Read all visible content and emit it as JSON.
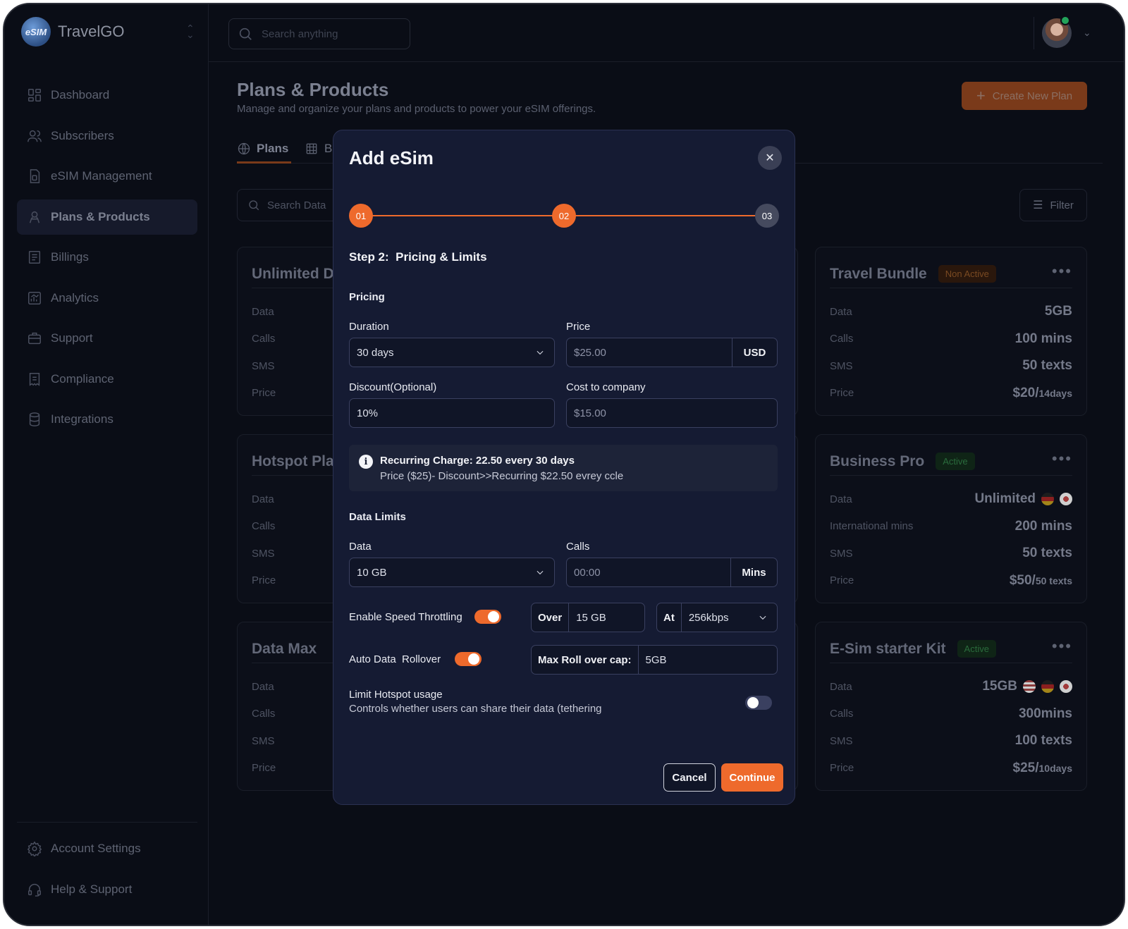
{
  "app": {
    "brand_logo_text": "eSIM",
    "brand_name": "TravelGO",
    "search_placeholder": "Search anything"
  },
  "sidebar": {
    "items": [
      {
        "label": "Dashboard",
        "icon": "dashboard-icon"
      },
      {
        "label": "Subscribers",
        "icon": "users-icon"
      },
      {
        "label": "eSIM Management",
        "icon": "sim-icon"
      },
      {
        "label": "Plans & Products",
        "icon": "plans-icon",
        "active": true
      },
      {
        "label": "Billings",
        "icon": "billing-icon"
      },
      {
        "label": "Analytics",
        "icon": "analytics-icon"
      },
      {
        "label": "Support",
        "icon": "briefcase-icon"
      },
      {
        "label": "Compliance",
        "icon": "compliance-icon"
      },
      {
        "label": "Integrations",
        "icon": "database-icon"
      }
    ],
    "bottom_items": [
      {
        "label": "Account Settings",
        "icon": "gear-icon"
      },
      {
        "label": "Help & Support",
        "icon": "headset-icon"
      }
    ]
  },
  "page": {
    "title": "Plans & Products",
    "subtitle": "Manage and organize your plans and products to power your eSIM offerings.",
    "create_button": "Create New Plan",
    "tabs": [
      {
        "label": "Plans",
        "active": true
      },
      {
        "label": "B"
      }
    ],
    "search_placeholder": "Search Data",
    "filter_label": "Filter"
  },
  "cards": {
    "left": [
      {
        "title": "Unlimited D",
        "rows": [
          "Data",
          "Calls",
          "SMS",
          "Price"
        ]
      },
      {
        "title": "Hotspot Pla",
        "rows": [
          "Data",
          "Calls",
          "SMS",
          "Price"
        ]
      },
      {
        "title": "Data Max",
        "rows": [
          "Data",
          "Calls",
          "SMS",
          "Price"
        ]
      }
    ],
    "right": [
      {
        "title": "Travel Bundle",
        "badge": "Non Active",
        "badge_type": "inactive",
        "rows": [
          {
            "label": "Data",
            "value": "5GB"
          },
          {
            "label": "Calls",
            "value": "100 mins"
          },
          {
            "label": "SMS",
            "value": "50 texts"
          },
          {
            "label": "Price",
            "value": "$20/",
            "suffix": "14days"
          }
        ]
      },
      {
        "title": "Business Pro",
        "badge": "Active",
        "badge_type": "active",
        "rows": [
          {
            "label": "Data",
            "value": "Unlimited",
            "flags": [
              "de",
              "ca"
            ]
          },
          {
            "label": "International mins",
            "value": "200 mins"
          },
          {
            "label": "SMS",
            "value": "50 texts"
          },
          {
            "label": "Price",
            "value": "$50/",
            "suffix": "50 texts"
          }
        ]
      },
      {
        "title": "E-Sim starter Kit",
        "badge": "Active",
        "badge_type": "active",
        "rows": [
          {
            "label": "Data",
            "value": "15GB",
            "flags": [
              "us",
              "de",
              "ca"
            ]
          },
          {
            "label": "Calls",
            "value": "300mins"
          },
          {
            "label": "SMS",
            "value": "100 texts"
          },
          {
            "label": "Price",
            "value": "$25/",
            "suffix": "10days"
          }
        ]
      }
    ]
  },
  "modal": {
    "title": "Add eSim",
    "close_icon": "close-icon",
    "steps": [
      "01",
      "02",
      "03"
    ],
    "current_step": 2,
    "step_heading": "Step 2:  Pricing & Limits",
    "pricing_section": "Pricing",
    "duration_label": "Duration",
    "duration_value": "30 days",
    "price_label": "Price",
    "price_placeholder": "$25.00",
    "price_currency": "USD",
    "discount_label": "Discount(Optional)",
    "discount_value": "10%",
    "cost_label": "Cost to company",
    "cost_placeholder": "$15.00",
    "info_title": "Recurring Charge: 22.50 every 30 days",
    "info_sub": "Price ($25)- Discount>>Recurring $22.50 evrey ccle",
    "data_limits_section": "Data Limits",
    "data_label": "Data",
    "data_value": "10 GB",
    "calls_label": "Calls",
    "calls_placeholder": "00:00",
    "calls_unit": "Mins",
    "throttle_label": "Enable Speed Throttling",
    "throttle_on": true,
    "over_label": "Over",
    "over_value": "15 GB",
    "at_label": "At",
    "at_value": "256kbps",
    "rollover_label": "Auto Data  Rollover",
    "rollover_on": true,
    "rollover_cap_label": "Max Roll over cap:",
    "rollover_cap_value": "5GB",
    "hotspot_label": "Limit Hotspot usage",
    "hotspot_desc": "Controls whether users can share their data (tethering",
    "hotspot_on": false,
    "cancel_label": "Cancel",
    "continue_label": "Continue"
  },
  "colors": {
    "accent": "#ee6a2c",
    "modal_bg": "#151b33",
    "page_bg": "#0a0d16"
  }
}
